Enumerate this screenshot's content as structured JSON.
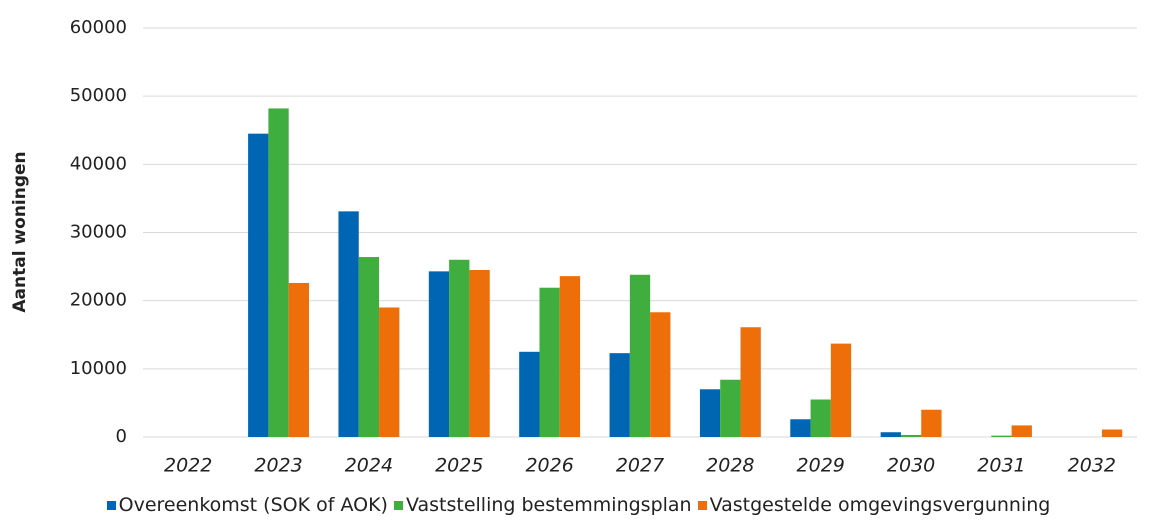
{
  "chart_data": {
    "type": "bar",
    "y_label": "Aantal woningen",
    "categories": [
      "2022",
      "2023",
      "2024",
      "2025",
      "2026",
      "2027",
      "2028",
      "2029",
      "2030",
      "2031",
      "2032"
    ],
    "series": [
      {
        "name": "Overeenkomst (SOK of AOK)",
        "color": "#0066b3",
        "values": [
          0,
          44500,
          33100,
          24300,
          12500,
          12300,
          7000,
          2600,
          700,
          0,
          0
        ]
      },
      {
        "name": "Vaststelling bestemmingsplan",
        "color": "#3fae3f",
        "values": [
          0,
          48200,
          26400,
          26000,
          21900,
          23800,
          8400,
          5500,
          300,
          200,
          0
        ]
      },
      {
        "name": "Vastgestelde omgevingsvergunning",
        "color": "#ee6e0a",
        "values": [
          0,
          22600,
          19000,
          24500,
          23600,
          18300,
          16100,
          13700,
          4000,
          1700,
          1100
        ]
      }
    ],
    "ylim": [
      0,
      60000
    ],
    "yticks": [
      0,
      10000,
      20000,
      30000,
      40000,
      50000,
      60000
    ],
    "grid": true,
    "legend": "bottom"
  }
}
